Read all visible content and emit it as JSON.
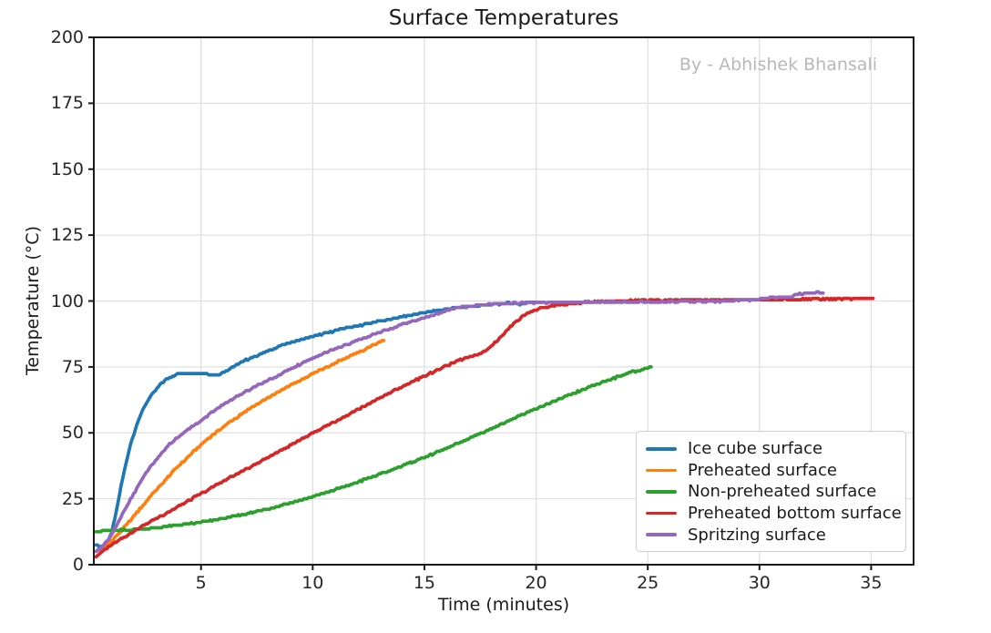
{
  "chart": {
    "background": "#ffffff",
    "spine_color": "#1a1a1a",
    "grid_color": "#e0e0e0",
    "watermark_color": "#b8b8b8"
  },
  "chart_data": {
    "type": "line",
    "title": "Surface Temperatures",
    "watermark": "By - Abhishek Bhansali",
    "xlabel": "Time (minutes)",
    "ylabel": "Temperature (°C)",
    "xlim": [
      0.2,
      36.9
    ],
    "ylim": [
      0,
      200
    ],
    "x_ticks": [
      5,
      10,
      15,
      20,
      25,
      30,
      35
    ],
    "y_ticks": [
      0,
      25,
      50,
      75,
      100,
      125,
      150,
      175,
      200
    ],
    "grid": true,
    "legend_position": "lower right",
    "series": [
      {
        "name": "Ice cube surface",
        "color": "#1f77b4",
        "points": [
          [
            0.3,
            7.5
          ],
          [
            0.45,
            6.8
          ],
          [
            0.6,
            7.2
          ],
          [
            0.8,
            8.5
          ],
          [
            1.0,
            12
          ],
          [
            1.2,
            20
          ],
          [
            1.4,
            29
          ],
          [
            1.6,
            37
          ],
          [
            1.8,
            44
          ],
          [
            2.0,
            50
          ],
          [
            2.2,
            55
          ],
          [
            2.4,
            59
          ],
          [
            2.6,
            62
          ],
          [
            2.8,
            64.5
          ],
          [
            3.0,
            66.5
          ],
          [
            3.2,
            68.5
          ],
          [
            3.4,
            70
          ],
          [
            3.6,
            71
          ],
          [
            3.8,
            71.8
          ],
          [
            4.0,
            72.3
          ],
          [
            4.3,
            72.5
          ],
          [
            4.6,
            72.5
          ],
          [
            5.0,
            72.5
          ],
          [
            5.3,
            72.4
          ],
          [
            5.6,
            71.9
          ],
          [
            5.9,
            72.6
          ],
          [
            6.2,
            74
          ],
          [
            6.6,
            75.8
          ],
          [
            7.0,
            77.5
          ],
          [
            7.5,
            79.3
          ],
          [
            8.0,
            81
          ],
          [
            8.5,
            82.8
          ],
          [
            9.0,
            84.3
          ],
          [
            9.5,
            85.5
          ],
          [
            10.0,
            86.6
          ],
          [
            10.5,
            87.7
          ],
          [
            11.0,
            88.7
          ],
          [
            11.5,
            89.7
          ],
          [
            12.0,
            90.6
          ],
          [
            12.5,
            91.5
          ],
          [
            13.0,
            92.4
          ],
          [
            13.5,
            93.2
          ],
          [
            14.0,
            94
          ],
          [
            14.5,
            94.8
          ],
          [
            15.0,
            95.5
          ],
          [
            15.5,
            96.3
          ],
          [
            16.0,
            97
          ],
          [
            16.5,
            97.5
          ],
          [
            17.0,
            98
          ],
          [
            17.5,
            98.3
          ],
          [
            18.0,
            98.6
          ],
          [
            18.5,
            99
          ],
          [
            19.0,
            99.3
          ],
          [
            19.3,
            98.8
          ],
          [
            19.6,
            99.5
          ],
          [
            20.0,
            99.5
          ],
          [
            20.3,
            99.5
          ]
        ]
      },
      {
        "name": "Preheated surface",
        "color": "#ff7f0e",
        "points": [
          [
            0.3,
            5
          ],
          [
            0.5,
            5.8
          ],
          [
            0.75,
            7.2
          ],
          [
            1.0,
            9
          ],
          [
            1.5,
            13.5
          ],
          [
            2.0,
            18.5
          ],
          [
            2.5,
            23.5
          ],
          [
            3.0,
            28.5
          ],
          [
            3.5,
            33
          ],
          [
            4.0,
            37.5
          ],
          [
            4.5,
            41.5
          ],
          [
            5.0,
            45.5
          ],
          [
            5.5,
            49
          ],
          [
            6.0,
            52.3
          ],
          [
            6.5,
            55.3
          ],
          [
            7.0,
            58.2
          ],
          [
            7.5,
            60.8
          ],
          [
            8.0,
            63.3
          ],
          [
            8.5,
            65.7
          ],
          [
            9.0,
            68
          ],
          [
            9.5,
            70.3
          ],
          [
            10.0,
            72.5
          ],
          [
            10.5,
            74.5
          ],
          [
            11.0,
            76.5
          ],
          [
            11.5,
            78.5
          ],
          [
            12.0,
            80.3
          ],
          [
            12.5,
            82.2
          ],
          [
            13.0,
            84.5
          ],
          [
            13.2,
            85
          ]
        ]
      },
      {
        "name": "Non-preheated surface",
        "color": "#2ca02c",
        "points": [
          [
            0.3,
            12.5
          ],
          [
            0.7,
            13
          ],
          [
            1.2,
            13.1
          ],
          [
            1.7,
            13.2
          ],
          [
            2.2,
            13.5
          ],
          [
            2.7,
            13.8
          ],
          [
            3.2,
            14.2
          ],
          [
            3.7,
            14.7
          ],
          [
            4.2,
            15.2
          ],
          [
            4.7,
            15.8
          ],
          [
            5.2,
            16.4
          ],
          [
            5.7,
            17.1
          ],
          [
            6.2,
            17.9
          ],
          [
            6.7,
            18.7
          ],
          [
            7.2,
            19.6
          ],
          [
            7.7,
            20.6
          ],
          [
            8.2,
            21.6
          ],
          [
            8.7,
            22.7
          ],
          [
            9.2,
            23.9
          ],
          [
            9.7,
            25.1
          ],
          [
            10.2,
            26.3
          ],
          [
            10.7,
            27.6
          ],
          [
            11.2,
            29
          ],
          [
            11.7,
            30.4
          ],
          [
            12.2,
            31.9
          ],
          [
            12.7,
            33.4
          ],
          [
            13.2,
            35
          ],
          [
            13.7,
            36.5
          ],
          [
            14.2,
            38.1
          ],
          [
            14.7,
            39.7
          ],
          [
            15.2,
            41.4
          ],
          [
            15.7,
            43.1
          ],
          [
            16.2,
            44.9
          ],
          [
            16.7,
            46.7
          ],
          [
            17.2,
            48.6
          ],
          [
            17.7,
            50.5
          ],
          [
            18.2,
            52.4
          ],
          [
            18.7,
            54.3
          ],
          [
            19.2,
            56.2
          ],
          [
            19.7,
            58
          ],
          [
            20.2,
            59.8
          ],
          [
            20.7,
            61.6
          ],
          [
            21.2,
            63.3
          ],
          [
            21.7,
            65
          ],
          [
            22.2,
            66.7
          ],
          [
            22.7,
            68.3
          ],
          [
            23.2,
            69.9
          ],
          [
            23.7,
            71.4
          ],
          [
            24.2,
            72.8
          ],
          [
            24.7,
            74
          ],
          [
            25.0,
            74.7
          ],
          [
            25.2,
            75.2
          ]
        ]
      },
      {
        "name": "Preheated bottom surface",
        "color": "#d62728",
        "points": [
          [
            0.3,
            3
          ],
          [
            0.6,
            5
          ],
          [
            1.0,
            7.5
          ],
          [
            1.5,
            10.3
          ],
          [
            2.0,
            12.8
          ],
          [
            2.5,
            15.2
          ],
          [
            3.0,
            17.5
          ],
          [
            3.5,
            19.8
          ],
          [
            4.0,
            22.2
          ],
          [
            4.5,
            24.6
          ],
          [
            5.0,
            27
          ],
          [
            5.5,
            29.3
          ],
          [
            6.0,
            31.6
          ],
          [
            6.5,
            33.9
          ],
          [
            7.0,
            36.2
          ],
          [
            7.5,
            38.4
          ],
          [
            8.0,
            40.7
          ],
          [
            8.5,
            43
          ],
          [
            9.0,
            45.2
          ],
          [
            9.5,
            47.5
          ],
          [
            10.0,
            49.8
          ],
          [
            10.5,
            52
          ],
          [
            11.0,
            54.3
          ],
          [
            11.5,
            56.5
          ],
          [
            12.0,
            58.8
          ],
          [
            12.5,
            61
          ],
          [
            13.0,
            63.2
          ],
          [
            13.5,
            65.4
          ],
          [
            14.0,
            67.5
          ],
          [
            14.5,
            69.5
          ],
          [
            15.0,
            71.5
          ],
          [
            15.5,
            73.5
          ],
          [
            16.0,
            75.5
          ],
          [
            16.5,
            77.3
          ],
          [
            17.0,
            78.8
          ],
          [
            17.4,
            79.8
          ],
          [
            17.8,
            81.5
          ],
          [
            18.2,
            84.5
          ],
          [
            18.6,
            88
          ],
          [
            19.0,
            91.5
          ],
          [
            19.4,
            94.2
          ],
          [
            19.8,
            96.2
          ],
          [
            20.2,
            97.3
          ],
          [
            20.6,
            98
          ],
          [
            21.0,
            98.5
          ],
          [
            21.5,
            98.9
          ],
          [
            22.0,
            99.2
          ],
          [
            22.5,
            99.5
          ],
          [
            23.0,
            99.7
          ],
          [
            23.5,
            99.9
          ],
          [
            24.0,
            100.1
          ],
          [
            25.0,
            100.3
          ],
          [
            26.0,
            100.3
          ],
          [
            27.0,
            100.4
          ],
          [
            28.0,
            100.4
          ],
          [
            29.0,
            100.5
          ],
          [
            30.0,
            100.5
          ],
          [
            31.0,
            100.6
          ],
          [
            32.0,
            100.7
          ],
          [
            33.0,
            100.8
          ],
          [
            34.0,
            100.9
          ],
          [
            34.6,
            101
          ],
          [
            35.1,
            101
          ]
        ]
      },
      {
        "name": "Spritzing surface",
        "color": "#9467bd",
        "points": [
          [
            0.3,
            5
          ],
          [
            0.5,
            6.2
          ],
          [
            0.75,
            8.5
          ],
          [
            1.0,
            11.5
          ],
          [
            1.25,
            15.5
          ],
          [
            1.5,
            19.5
          ],
          [
            1.75,
            23.3
          ],
          [
            2.0,
            27
          ],
          [
            2.5,
            34.5
          ],
          [
            3.0,
            40
          ],
          [
            3.5,
            45
          ],
          [
            4.0,
            48.7
          ],
          [
            4.5,
            51.7
          ],
          [
            5.0,
            54.5
          ],
          [
            5.5,
            57.8
          ],
          [
            6.0,
            60.8
          ],
          [
            6.5,
            63.3
          ],
          [
            7.0,
            65.7
          ],
          [
            7.5,
            67.8
          ],
          [
            8.0,
            69.8
          ],
          [
            8.5,
            72
          ],
          [
            9.0,
            74.2
          ],
          [
            9.5,
            76.3
          ],
          [
            10.0,
            78.3
          ],
          [
            10.5,
            80.2
          ],
          [
            11.0,
            81.9
          ],
          [
            11.5,
            83.5
          ],
          [
            12.0,
            85
          ],
          [
            12.5,
            86.5
          ],
          [
            13.0,
            88
          ],
          [
            13.5,
            89.5
          ],
          [
            14.0,
            91
          ],
          [
            14.5,
            92.3
          ],
          [
            15.0,
            93.6
          ],
          [
            15.5,
            95
          ],
          [
            16.0,
            96.4
          ],
          [
            16.5,
            97.4
          ],
          [
            17.0,
            98
          ],
          [
            17.5,
            98.5
          ],
          [
            18.0,
            98.8
          ],
          [
            18.5,
            99
          ],
          [
            19.0,
            99.2
          ],
          [
            19.5,
            99.3
          ],
          [
            20.0,
            99.4
          ],
          [
            21.0,
            99.5
          ],
          [
            22.0,
            99.6
          ],
          [
            23.0,
            99.6
          ],
          [
            24.0,
            99.7
          ],
          [
            25.0,
            99.7
          ],
          [
            26.0,
            99.8
          ],
          [
            27.0,
            99.8
          ],
          [
            28.0,
            99.9
          ],
          [
            29.0,
            100.1
          ],
          [
            30.0,
            100.6
          ],
          [
            30.5,
            101.2
          ],
          [
            31.0,
            101.5
          ],
          [
            31.4,
            101.6
          ],
          [
            31.7,
            102.6
          ],
          [
            32.0,
            103
          ],
          [
            32.3,
            103
          ],
          [
            32.5,
            103.4
          ],
          [
            32.7,
            103.1
          ],
          [
            32.9,
            103.2
          ]
        ]
      }
    ]
  }
}
